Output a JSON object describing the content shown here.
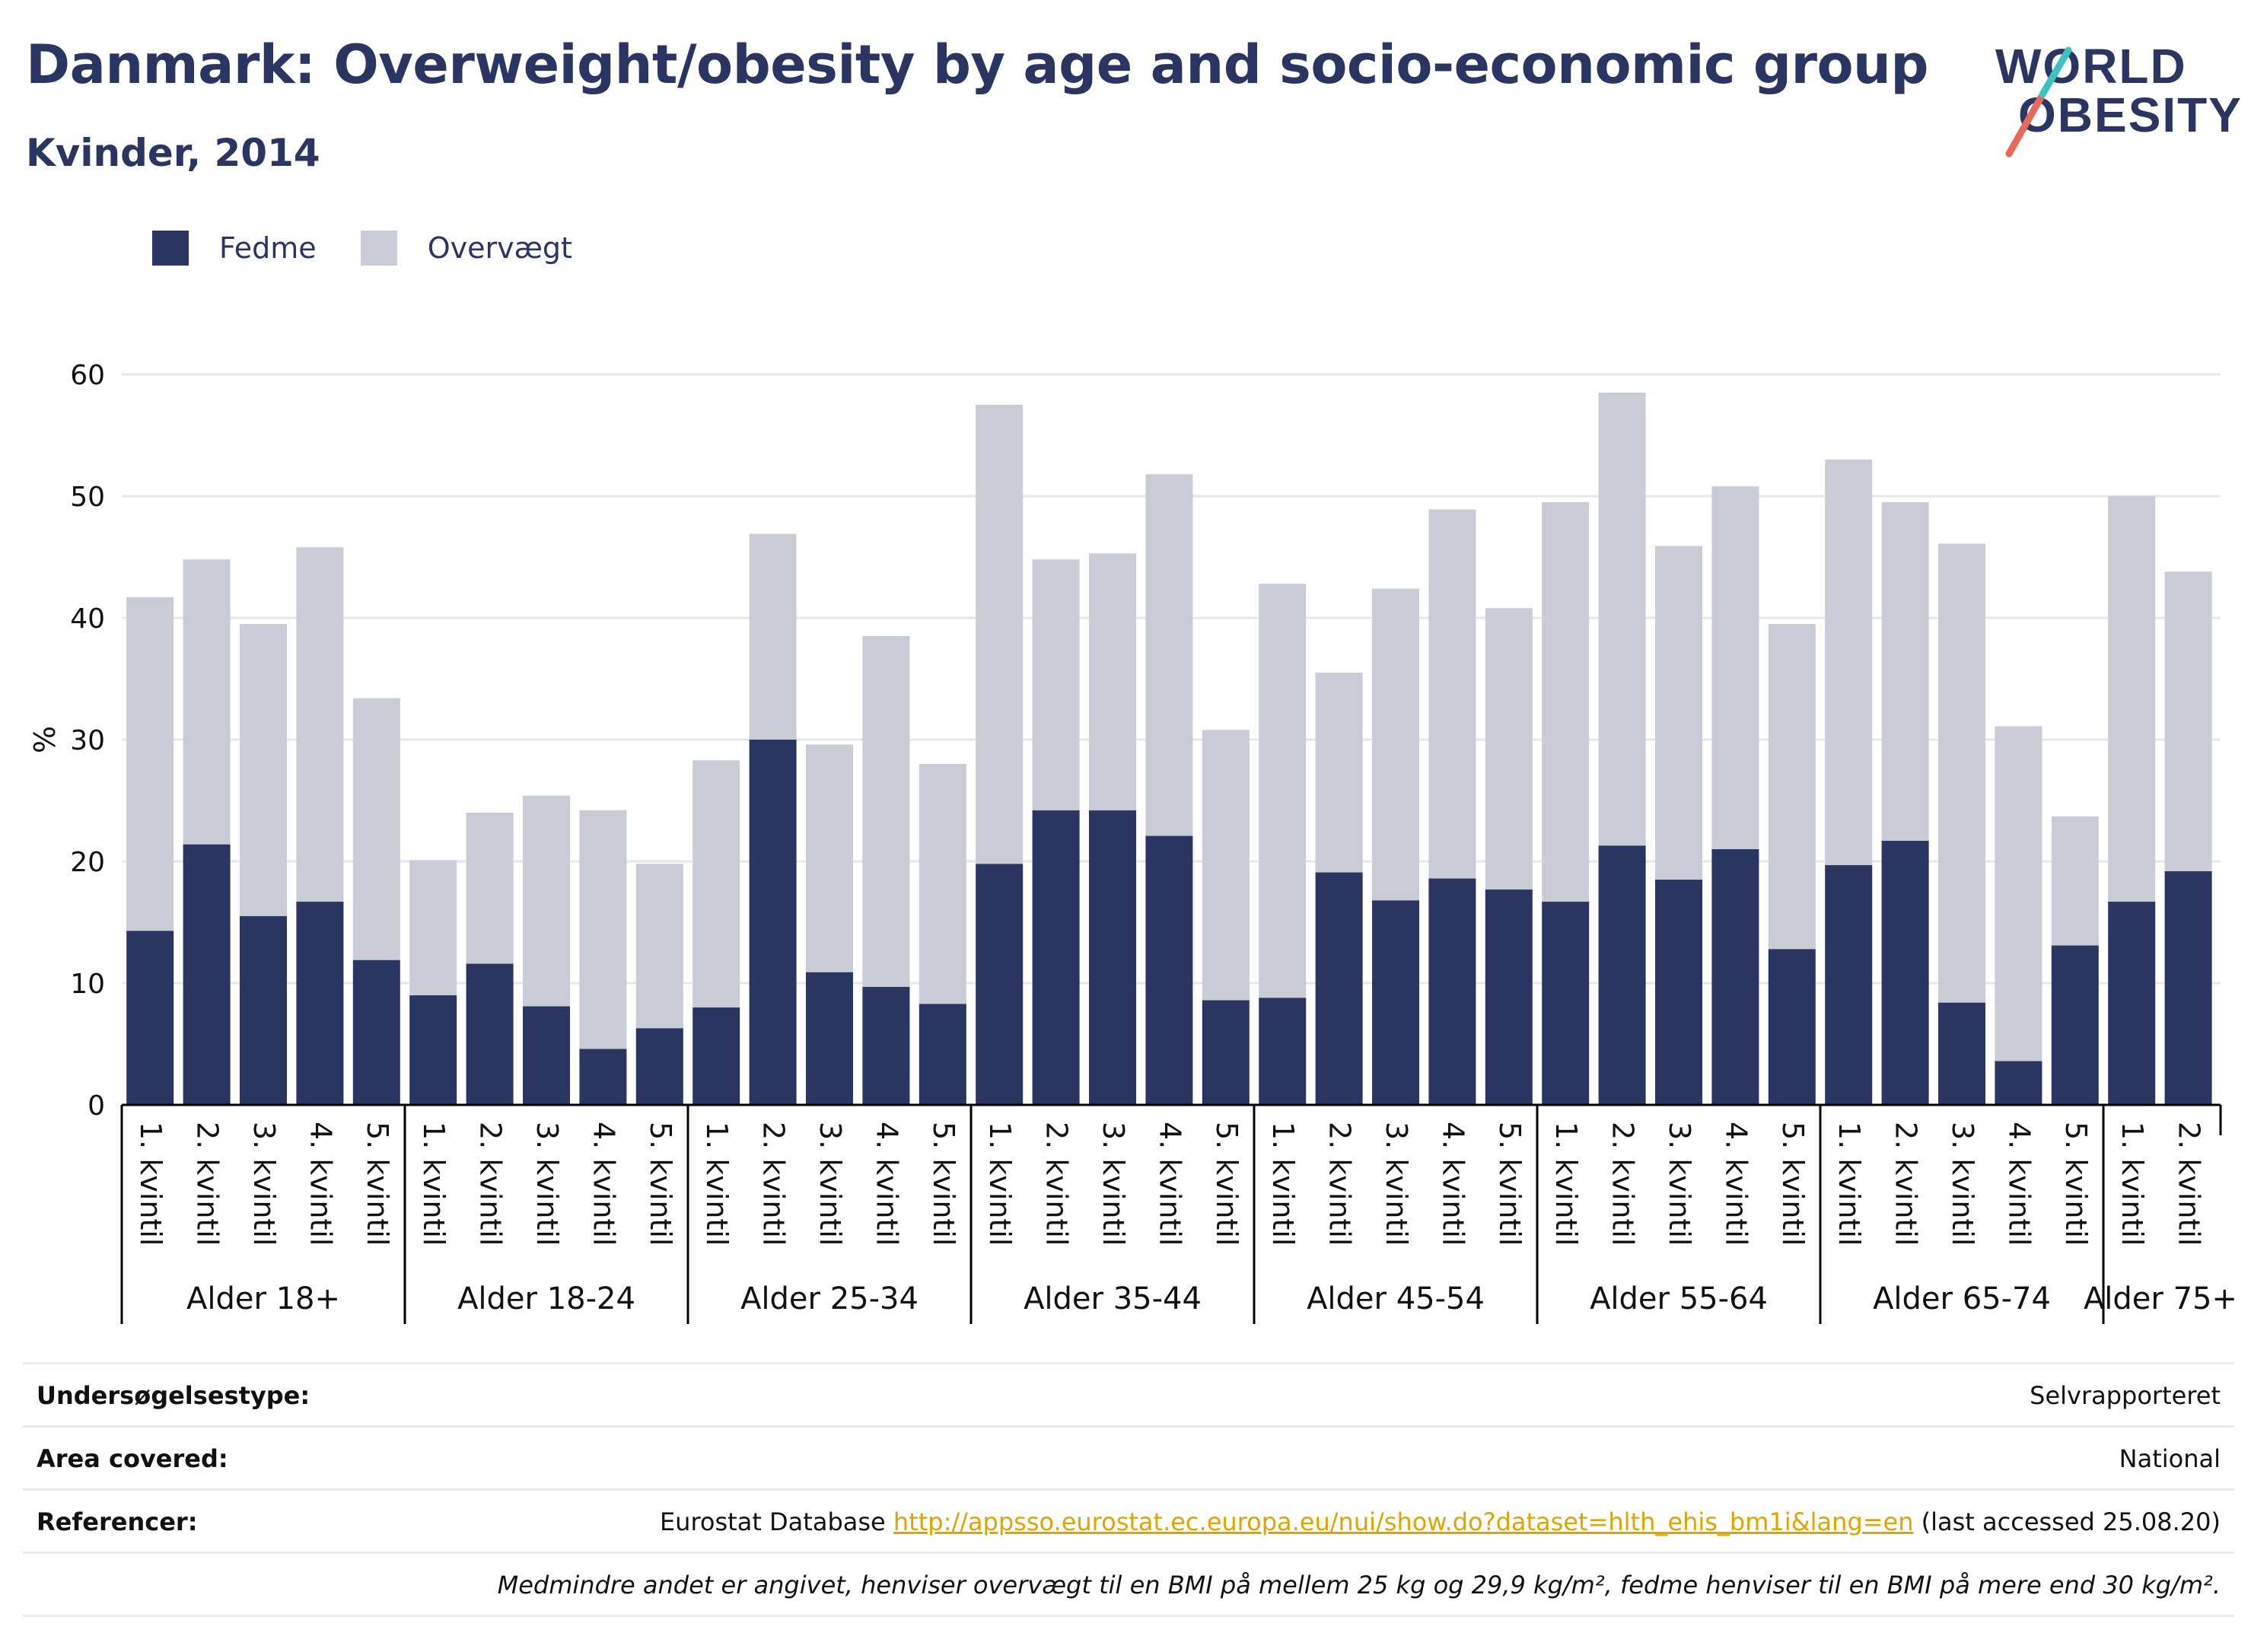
{
  "header": {
    "title": "Danmark: Overweight/obesity by age and socio-economic group",
    "subtitle": "Kvinder, 2014"
  },
  "logo": {
    "line1": "WORLD",
    "line2": "OBESITY",
    "colors": [
      "#2a3562",
      "#e8685a",
      "#3cc3c0"
    ]
  },
  "colors": {
    "obesity": "#2a3562",
    "overweight": "#c9cbd6",
    "axis": "#000000",
    "grid": "#e5e7ee"
  },
  "chart_data": {
    "type": "bar",
    "stacked": true,
    "ylabel": "%",
    "ylim": [
      0,
      60
    ],
    "yticks": [
      0,
      10,
      20,
      30,
      40,
      50,
      60
    ],
    "grid": true,
    "legend_position": "top-left",
    "categories": [
      "1. kvintil",
      "2. kvintil",
      "3. kvintil",
      "4. kvintil",
      "5. kvintil"
    ],
    "groups": [
      {
        "label": "Alder 18+",
        "fedme": [
          14.3,
          21.4,
          15.5,
          16.7,
          11.9
        ],
        "overvaegt": [
          27.4,
          23.4,
          24.0,
          29.1,
          21.5
        ]
      },
      {
        "label": "Alder 18-24",
        "fedme": [
          9.0,
          11.6,
          8.1,
          4.6,
          6.3
        ],
        "overvaegt": [
          11.1,
          12.4,
          17.3,
          19.6,
          13.5
        ]
      },
      {
        "label": "Alder 25-34",
        "fedme": [
          8.0,
          30.0,
          10.9,
          9.7,
          8.3
        ],
        "overvaegt": [
          20.3,
          16.9,
          18.7,
          28.8,
          19.7
        ]
      },
      {
        "label": "Alder 35-44",
        "fedme": [
          19.8,
          24.2,
          24.2,
          22.1,
          8.6
        ],
        "overvaegt": [
          37.7,
          20.6,
          21.1,
          29.7,
          22.2
        ]
      },
      {
        "label": "Alder 45-54",
        "fedme": [
          8.8,
          19.1,
          16.8,
          18.6,
          17.7
        ],
        "overvaegt": [
          34.0,
          16.4,
          25.6,
          30.3,
          23.1
        ]
      },
      {
        "label": "Alder 55-64",
        "fedme": [
          16.7,
          21.3,
          18.5,
          21.0,
          12.8
        ],
        "overvaegt": [
          32.8,
          37.2,
          27.4,
          29.8,
          26.7
        ]
      },
      {
        "label": "Alder 65-74",
        "fedme": [
          19.7,
          21.7,
          8.4,
          3.6,
          13.1
        ],
        "overvaegt": [
          33.3,
          27.8,
          37.7,
          27.5,
          10.6
        ]
      },
      {
        "label": "Alder 75+",
        "fedme": [
          16.7,
          19.2
        ],
        "overvaegt": [
          33.3,
          24.6
        ]
      }
    ],
    "series": [
      {
        "name": "Fedme",
        "color": "#2a3562"
      },
      {
        "name": "Overvægt",
        "color": "#c9cbd6"
      }
    ]
  },
  "legend": {
    "fedme": "Fedme",
    "overvaegt": "Overvægt"
  },
  "info": {
    "survey_label": "Undersøgelsestype:",
    "survey_value": "Selvrapporteret",
    "area_label": "Area covered:",
    "area_value": "National",
    "ref_label": "Referencer:",
    "ref_prefix": "Eurostat Database",
    "ref_link": "http://appsso.eurostat.ec.europa.eu/nui/show.do?dataset=hlth_ehis_bm1i&lang=en",
    "ref_suffix": "(last accessed 25.08.20)",
    "note": "Medmindre andet er angivet, henviser overvægt til en BMI på mellem 25 kg og 29,9 kg/m², fedme henviser til en BMI på mere end 30 kg/m²."
  }
}
